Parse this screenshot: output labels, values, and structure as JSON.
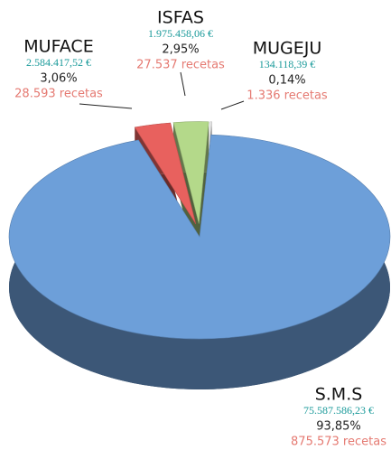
{
  "chart_data": {
    "type": "pie",
    "categories": [
      "S.M.S",
      "MUFACE",
      "ISFAS",
      "MUGEJU"
    ],
    "values": [
      93.85,
      3.06,
      2.95,
      0.14
    ],
    "value_labels": [
      "93,85%",
      "3,06%",
      "2,95%",
      "0,14%"
    ],
    "colors": [
      "#6d9fd9",
      "#e8615e",
      "#b4d98a",
      "#ececec"
    ],
    "amount_labels": [
      "75.587.586,23 €",
      "2.584.417,52 €",
      "1.975.458,06 €",
      "134.118,39 €"
    ],
    "recetas_labels": [
      "875.573 recetas",
      "28.593 recetas",
      "27.537 recetas",
      "1.336 recetas"
    ]
  }
}
